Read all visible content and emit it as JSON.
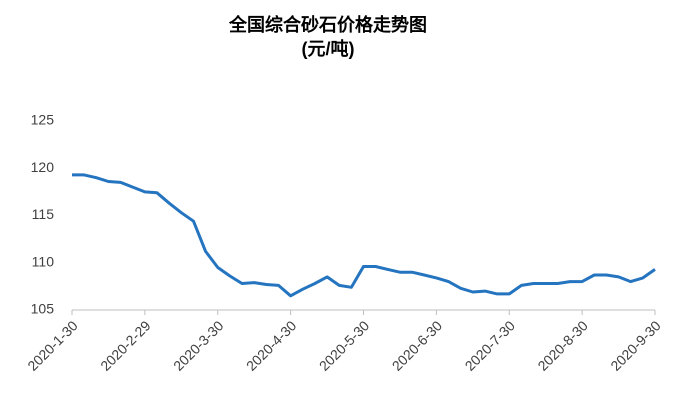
{
  "chart_data": {
    "type": "line",
    "title": "全国综合砂石价格走势图",
    "subtitle": "(元/吨)",
    "categories": [
      "2020-1-30",
      null,
      null,
      null,
      null,
      null,
      "2020-2-29",
      null,
      null,
      null,
      null,
      null,
      "2020-3-30",
      null,
      null,
      null,
      null,
      null,
      "2020-4-30",
      null,
      null,
      null,
      null,
      null,
      "2020-5-30",
      null,
      null,
      null,
      null,
      null,
      "2020-6-30",
      null,
      null,
      null,
      null,
      null,
      "2020-7-30",
      null,
      null,
      null,
      null,
      null,
      "2020-8-30",
      null,
      null,
      null,
      null,
      null,
      "2020-9-30"
    ],
    "series": [
      {
        "color": "#2474c0",
        "values": [
          119.3,
          119.3,
          119.0,
          118.6,
          118.5,
          118.0,
          117.5,
          117.4,
          116.3,
          115.3,
          114.4,
          111.2,
          109.5,
          108.6,
          107.8,
          107.9,
          107.7,
          107.6,
          106.5,
          107.2,
          107.8,
          108.5,
          107.6,
          107.4,
          109.6,
          109.6,
          109.3,
          109.0,
          109.0,
          108.7,
          108.4,
          108.0,
          107.3,
          106.9,
          107.0,
          106.7,
          106.7,
          107.6,
          107.8,
          107.8,
          107.8,
          108.0,
          108.0,
          108.7,
          108.7,
          108.5,
          108.0,
          108.4,
          109.3
        ]
      }
    ],
    "ylim": [
      105,
      125
    ],
    "yticks": [
      105,
      110,
      115,
      120,
      125
    ],
    "grid": false
  }
}
